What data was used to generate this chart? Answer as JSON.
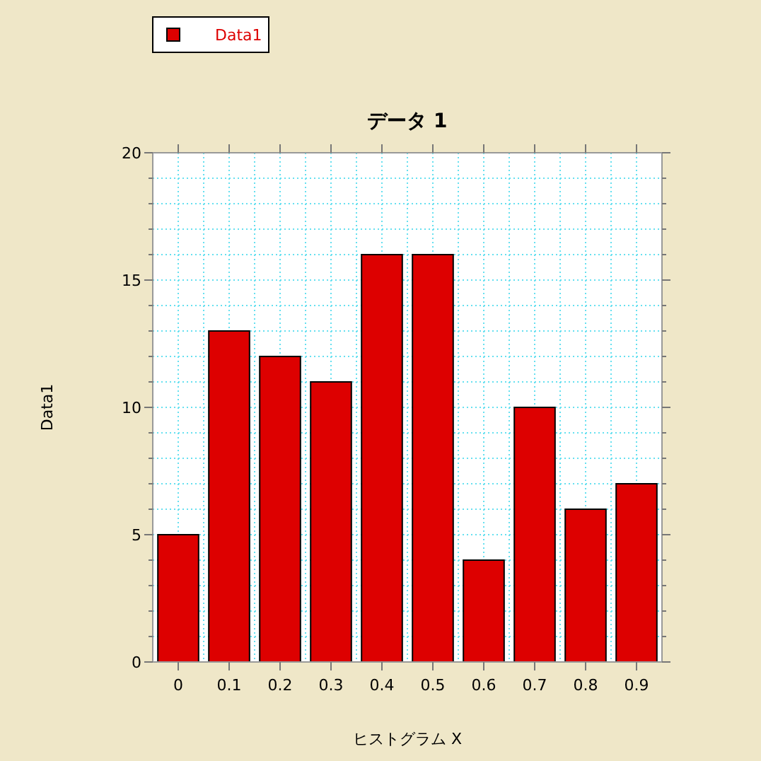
{
  "chart_data": {
    "type": "bar",
    "title": "データ 1",
    "xlabel": "ヒストグラム X",
    "ylabel": "Data1",
    "categories": [
      "0",
      "0.1",
      "0.2",
      "0.3",
      "0.4",
      "0.5",
      "0.6",
      "0.7",
      "0.8",
      "0.9"
    ],
    "series": [
      {
        "name": "Data1",
        "color": "#dd0000",
        "values": [
          5,
          13,
          12,
          11,
          16,
          16,
          4,
          10,
          6,
          7
        ]
      }
    ],
    "ylim": [
      0,
      20
    ],
    "yticks": [
      0,
      5,
      10,
      15,
      20
    ],
    "grid": true,
    "legend": "top left"
  }
}
